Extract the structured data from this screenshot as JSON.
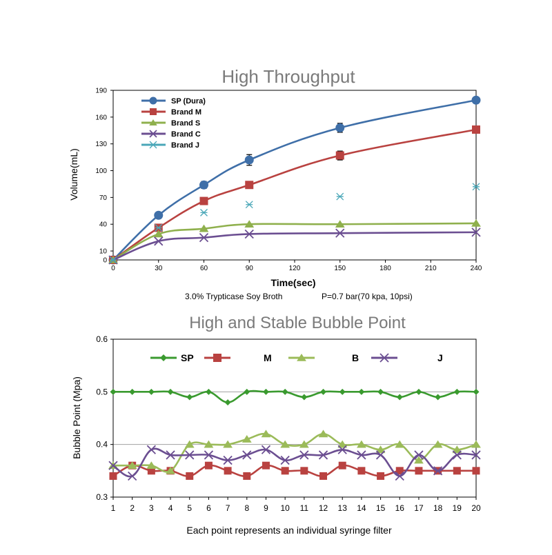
{
  "chart_data": [
    {
      "type": "line",
      "title": "High Throughput",
      "xlabel": "Time(sec)",
      "ylabel": "Volume(mL)",
      "subtitle_left": "3.0% Trypticase Soy Broth",
      "subtitle_right": "P=0.7 bar(70 kpa, 10psi)",
      "x_ticks": [
        0,
        30,
        60,
        90,
        120,
        150,
        180,
        210,
        240
      ],
      "y_ticks": [
        0,
        10,
        40,
        70,
        100,
        130,
        160,
        190
      ],
      "xlim": [
        0,
        240
      ],
      "ylim": [
        0,
        190
      ],
      "legend_position": "top-left",
      "series": [
        {
          "name": "SP (Dura)",
          "color": "#3f6fa8",
          "marker": "circle",
          "x": [
            0,
            30,
            60,
            90,
            150,
            240
          ],
          "y": [
            0,
            50,
            84,
            112,
            148,
            179
          ],
          "error": [
            0,
            0,
            4,
            6,
            5,
            0
          ],
          "line": true
        },
        {
          "name": "Brand M",
          "color": "#b94240",
          "marker": "square",
          "x": [
            0,
            30,
            60,
            90,
            150,
            240
          ],
          "y": [
            0,
            36,
            66,
            84,
            117,
            146
          ],
          "error": [
            0,
            0,
            3,
            4,
            5,
            0
          ],
          "line": true
        },
        {
          "name": "Brand S",
          "color": "#8fb04d",
          "marker": "triangle",
          "x": [
            0,
            30,
            60,
            90,
            150,
            240
          ],
          "y": [
            0,
            29,
            35,
            40,
            40,
            41
          ],
          "error": [
            0,
            0,
            0,
            0,
            0,
            0
          ],
          "line": true
        },
        {
          "name": "Brand C",
          "color": "#6b4e91",
          "marker": "x",
          "x": [
            0,
            30,
            60,
            90,
            150,
            240
          ],
          "y": [
            0,
            21,
            25,
            29,
            30,
            31
          ],
          "error": [
            0,
            0,
            0,
            0,
            0,
            0
          ],
          "line": true
        },
        {
          "name": "Brand J",
          "color": "#4aa7b8",
          "marker": "asterisk",
          "x": [
            0,
            30,
            60,
            90,
            150,
            240
          ],
          "y": [
            0,
            36,
            53,
            62,
            71,
            82
          ],
          "error": [
            0,
            0,
            0,
            0,
            0,
            0
          ],
          "line": false
        }
      ]
    },
    {
      "type": "line",
      "title": "High and Stable Bubble Point",
      "xlabel": "Each point represents an individual syringe filter",
      "ylabel": "Bubble Point (Mpa)",
      "x_ticks": [
        1,
        2,
        3,
        4,
        5,
        6,
        7,
        8,
        9,
        10,
        11,
        12,
        13,
        14,
        15,
        16,
        17,
        18,
        19,
        20
      ],
      "y_ticks": [
        0.3,
        0.4,
        0.5,
        0.6
      ],
      "y_tick_labels": [
        "0.3",
        "0.4",
        "0.5",
        "0.6"
      ],
      "ylim": [
        0.3,
        0.6
      ],
      "grid": true,
      "legend_position": "top",
      "series": [
        {
          "name": "SP",
          "color": "#3a9a2f",
          "marker": "diamond",
          "y": [
            0.5,
            0.5,
            0.5,
            0.5,
            0.49,
            0.5,
            0.48,
            0.5,
            0.5,
            0.5,
            0.49,
            0.5,
            0.5,
            0.5,
            0.5,
            0.49,
            0.5,
            0.49,
            0.5,
            0.5
          ]
        },
        {
          "name": "M",
          "color": "#b94240",
          "marker": "square",
          "y": [
            0.34,
            0.36,
            0.35,
            0.35,
            0.34,
            0.36,
            0.35,
            0.34,
            0.36,
            0.35,
            0.35,
            0.34,
            0.36,
            0.35,
            0.34,
            0.35,
            0.35,
            0.35,
            0.35,
            0.35
          ]
        },
        {
          "name": "B",
          "color": "#9bbb59",
          "marker": "triangle",
          "y": [
            0.36,
            0.36,
            0.36,
            0.35,
            0.4,
            0.4,
            0.4,
            0.41,
            0.42,
            0.4,
            0.4,
            0.42,
            0.4,
            0.4,
            0.39,
            0.4,
            0.37,
            0.4,
            0.39,
            0.4
          ]
        },
        {
          "name": "J",
          "color": "#6b4e91",
          "marker": "x",
          "y": [
            0.36,
            0.34,
            0.39,
            0.38,
            0.38,
            0.38,
            0.37,
            0.38,
            0.39,
            0.37,
            0.38,
            0.38,
            0.39,
            0.38,
            0.38,
            0.34,
            0.38,
            0.35,
            0.38,
            0.38
          ]
        }
      ]
    }
  ]
}
